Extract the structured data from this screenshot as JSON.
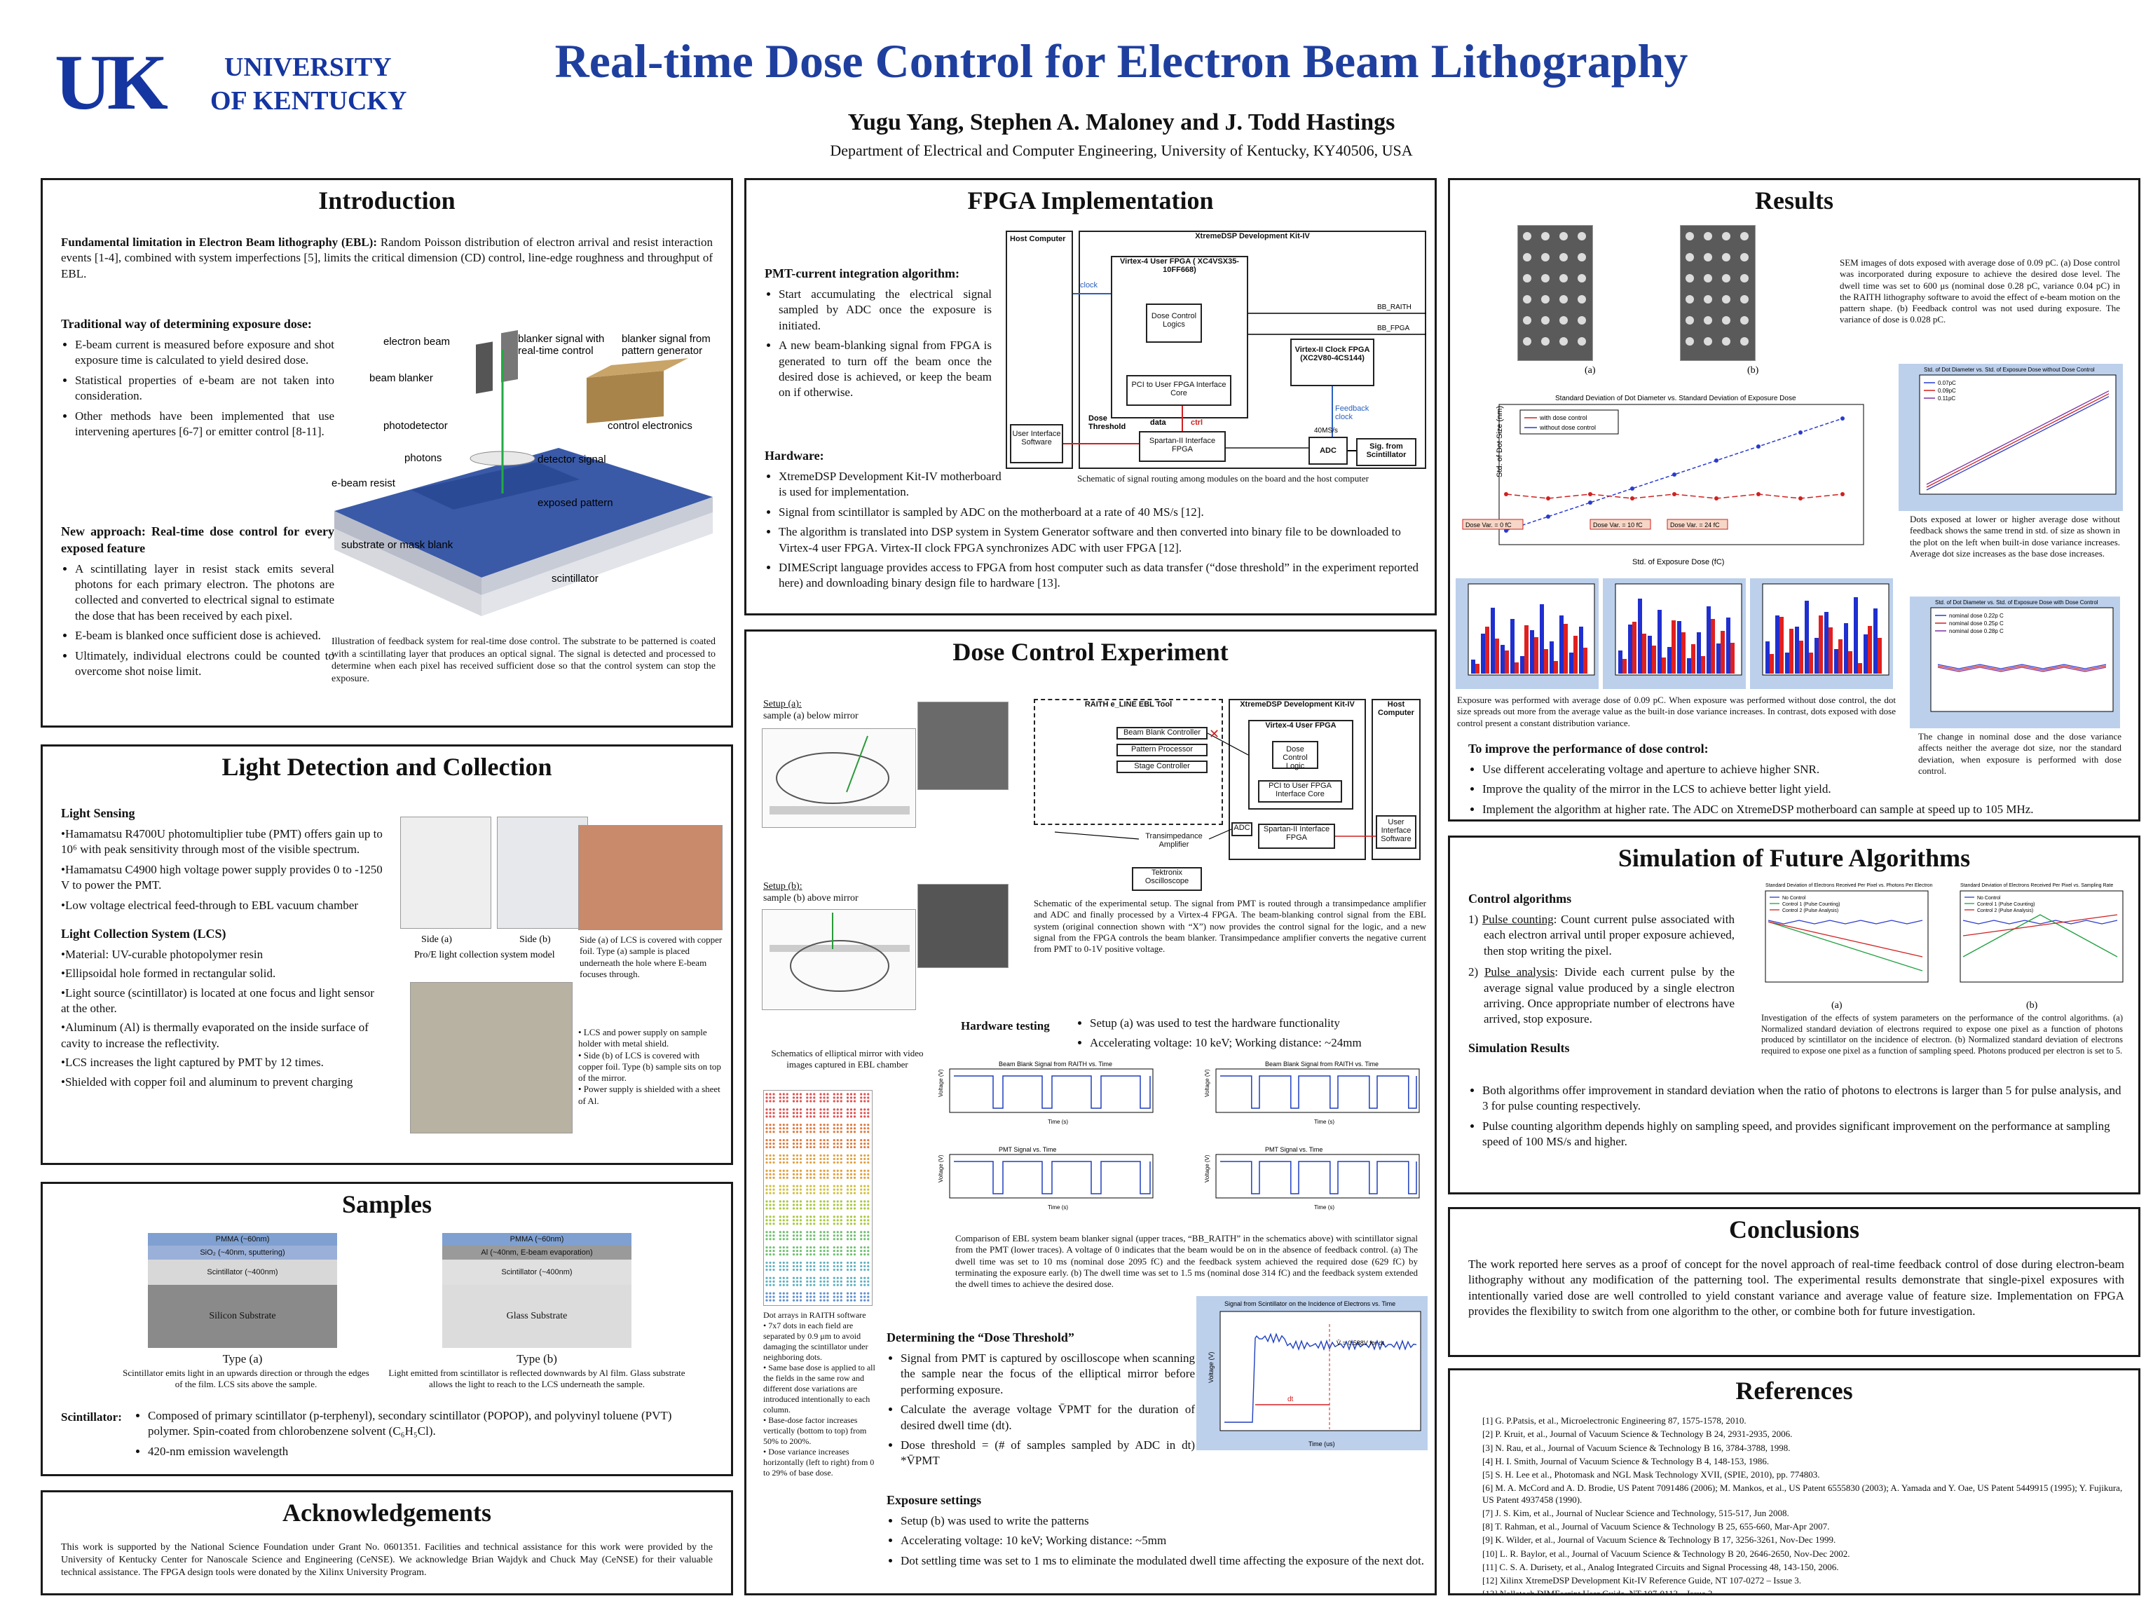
{
  "header": {
    "logo_uk": "UK",
    "logo_univ_line1": "UNIVERSITY",
    "logo_univ_line2": "OF KENTUCKY",
    "title": "Real-time Dose Control for Electron Beam Lithography",
    "authors": "Yugu Yang, Stephen A. Maloney and J. Todd Hastings",
    "affiliation": "Department of Electrical and Computer Engineering, University of Kentucky,  KY40506, USA"
  },
  "intro": {
    "title": "Introduction",
    "fundamental_label": "Fundamental limitation in Electron Beam lithography (EBL):",
    "fundamental_text": "Random Poisson distribution of electron arrival and resist interaction events [1-4], combined with system imperfections [5], limits the critical dimension (CD) control, line-edge roughness and throughput of EBL.",
    "traditional_title": "Traditional way of determining exposure dose:",
    "traditional_items": [
      "E-beam current is measured before exposure and shot exposure time is calculated to yield desired dose.",
      "Statistical properties of e-beam are not taken into consideration.",
      "Other methods have been implemented that use intervening apertures [6-7] or emitter control [8-11]."
    ],
    "new_title": "New approach: Real-time dose control for every exposed feature",
    "new_items": [
      "A scintillating layer in resist stack emits several photons for each primary electron. The photons are collected and converted to electrical signal to estimate the dose that has been received by each pixel.",
      "E-beam is blanked once sufficient dose is achieved.",
      "Ultimately, individual electrons could be counted to overcome shot noise limit."
    ],
    "fig_labels": {
      "electron_beam": "electron beam",
      "blanker_rt": "blanker signal with real-time control",
      "blanker_pg": "blanker signal from pattern generator",
      "beam_blanker": "beam blanker",
      "photodetector": "photodetector",
      "control_electronics": "control electronics",
      "photons": "photons",
      "detector_signal": "detector signal",
      "ebeam_resist": "e-beam resist",
      "exposed_pattern": "exposed pattern",
      "substrate": "substrate or mask blank",
      "scintillator": "scintillator"
    },
    "caption": "Illustration of feedback system for real-time dose control.  The substrate to be patterned is coated with a scintillating layer that produces an optical signal.  The signal is detected and processed to determine when each pixel has received sufficient dose so that the control system can stop the exposure."
  },
  "light": {
    "title": "Light Detection and Collection",
    "sensing_title": "Light Sensing",
    "sensing_items": [
      "•Hamamatsu R4700U photomultiplier tube (PMT) offers gain up to",
      "with peak sensitivity through most of the visible spectrum.",
      "•Hamamatsu C4900 high voltage power supply provides 0 to -1250 V to power the PMT.",
      "•Low voltage electrical feed-through to EBL vacuum chamber"
    ],
    "gain_value": "10⁶",
    "lcs_title": "Light Collection System (LCS)",
    "lcs_items": [
      "•Material: UV-curable photopolymer resin",
      "•Ellipsoidal hole formed in rectangular solid.",
      "•Light source (scintillator) is located at one focus and light sensor at the other.",
      "•Aluminum (Al) is thermally evaporated on the inside surface of cavity to increase the reflectivity.",
      "•LCS increases the light captured by PMT by 12 times.",
      "•Shielded with copper foil and aluminum to prevent charging"
    ],
    "side_a": "Side (a)",
    "side_b": "Side (b)",
    "proe_caption": "Pro/E light collection system model",
    "copper_caption": "Side (a) of LCS is covered with copper foil. Type (a) sample is placed underneath the hole where E-beam focuses through.",
    "photo_notes": [
      "•  LCS and power supply on sample holder with metal shield.",
      "•  Side (b) of LCS is covered with copper foil. Type (b) sample sits on top of the mirror.",
      "•  Power supply is shielded with a sheet of Al."
    ]
  },
  "samples": {
    "title": "Samples",
    "type_a_layers": [
      "PMMA (~60nm)",
      "SiO₂ (~40nm, sputtering)",
      "Scintillator (~400nm)",
      "Silicon Substrate"
    ],
    "type_b_layers": [
      "PMMA (~60nm)",
      "Al (~40nm, E-beam evaporation)",
      "Scintillator (~400nm)",
      "Glass Substrate"
    ],
    "type_a_label": "Type (a)",
    "type_b_label": "Type (b)",
    "type_a_caption": "Scintillator emits light in an upwards direction or through the edges of the film. LCS sits above the sample.",
    "type_b_caption": "Light emitted from scintillator is reflected downwards by Al film. Glass substrate allows the light to reach to the LCS underneath the sample.",
    "scint_label": "Scintillator:",
    "scint_items": [
      "Composed of primary scintillator (p-terphenyl), secondary scintillator (POPOP), and polyvinyl toluene (PVT) polymer.  Spin-coated from chlorobenzene solvent (C₆H₅Cl).",
      "420-nm emission wavelength"
    ]
  },
  "ack": {
    "title": "Acknowledgements",
    "text": "This work is supported by the National Science Foundation under Grant No. 0601351. Facilities and technical assistance for this work were provided by the University of Kentucky Center for Nanoscale Science and Engineering (CeNSE). We acknowledge Brian Wajdyk and Chuck May (CeNSE) for their valuable technical assistance.  The FPGA design tools were donated by the Xilinx University Program."
  },
  "fpga": {
    "title": "FPGA Implementation",
    "pmt_title": "PMT-current integration algorithm:",
    "pmt_items": [
      "Start accumulating the electrical signal sampled by ADC once the exposure is initiated.",
      "A new beam-blanking signal from FPGA is generated to turn off the beam once the desired dose is achieved, or keep the beam on if otherwise."
    ],
    "hardware_title": "Hardware:",
    "hardware_items": [
      "XtremeDSP Development Kit-IV motherboard is used for implementation.",
      "Signal from scintillator is sampled by ADC on the motherboard at a rate of 40 MS/s [12].",
      "The algorithm is translated into DSP system in System Generator software and then converted into binary file to be downloaded to Virtex-4 user FPGA. Virtex-II clock FPGA synchronizes ADC with user FPGA [12].",
      "DIMEScript language provides access to FPGA from host computer such as data transfer (“dose threshold” in the experiment reported here) and downloading binary design file to hardware [13]."
    ],
    "diagram": {
      "host": "Host Computer",
      "kit": "XtremeDSP Development Kit-IV",
      "virtex4": "Virtex-4 User FPGA ( XC4VSX35-10FF668)",
      "dose_logic": "Dose Control Logics",
      "pci": "PCI to User FPGA Interface Core",
      "clock_fpga": "Virtex-II Clock FPGA (XC2V80-4CS144)",
      "spartan": "Spartan-II Interface FPGA",
      "adc": "ADC",
      "adc_rate": "40MS/s",
      "ui": "User Interface Software",
      "dose_threshold": "Dose Threshold",
      "sig": "Sig. from Scintillator",
      "clock": "clock",
      "feedback_clock": "Feedback clock",
      "bb_raith": "BB_RAITH",
      "bb_fpga": "BB_FPGA",
      "data": "data",
      "ctrl": "ctrl"
    },
    "caption": "Schematic of signal routing among modules on the board and the host computer"
  },
  "dose": {
    "title": "Dose Control  Experiment",
    "setup_a": "Setup (a):",
    "setup_a_desc": "sample (a) below mirror",
    "setup_b": "Setup (b):",
    "setup_b_desc": "sample (b) above mirror",
    "mirror_caption": "Schematics of elliptical mirror with video images captured in EBL chamber",
    "schematic_caption": "Schematic of the experimental setup. The signal from PMT is routed through a transimpedance amplifier and ADC and finally processed by a Virtex-4 FPGA. The beam-blanking control signal from the EBL system (original connection shown with “X”) now provides the control signal for the logic, and a new signal from the FPGA controls the beam blanker. Transimpedance amplifier converts the negative current from PMT to 0-1V positive voltage.",
    "schem_labels": {
      "raith": "RAITH e_LINE EBL Tool",
      "kit": "XtremeDSP Development Kit-IV",
      "host": "Host Computer",
      "beam_blank": "Beam Blank Controller",
      "pattern": "Pattern Processor",
      "stage": "Stage Controller",
      "virtex": "Virtex-4 User FPGA",
      "logic": "Dose Control Logic",
      "pci": "PCI to User FPGA Interface Core",
      "spartan": "Spartan-II Interface FPGA",
      "ui": "User Interface Software",
      "amp": "Transimpedance Amplifier",
      "scope": "Tektronix Oscilloscope",
      "adc": "ADC"
    },
    "hw_testing_title": "Hardware testing",
    "hw_testing_items": [
      "Setup (a) was used to test the hardware functionality",
      "Accelerating voltage: 10 keV; Working distance: ~24mm"
    ],
    "plot_top_title": "Beam Blank Signal from RAITH vs. Time",
    "plot_bottom_title": "PMT Signal vs. Time",
    "plot_xlabel": "Time (s)",
    "plot_ylabel": "Voltage (V)",
    "comparison_caption": "Comparison of EBL system beam blanker signal (upper traces, “BB_RAITH” in the schematics above) with scintillator signal from the PMT (lower traces).  A voltage of 0 indicates that the beam would be on in the absence of feedback control. (a) The dwell time was set to 10 ms (nominal dose 2095 fC) and the feedback system achieved the required dose (629 fC) by terminating the exposure early. (b) The dwell time was set to 1.5 ms (nominal dose 314 fC) and the feedback system extended the dwell times to achieve the desired dose.",
    "dot_caption_title": "Dot arrays in RAITH software",
    "dot_caption_items": [
      "• 7x7 dots in each field are separated by 0.9 μm to avoid damaging the scintillator under neighboring dots.",
      "• Same base dose is applied to all the fields in the same row and different dose variations are introduced intentionally to each column.",
      "• Base-dose factor increases vertically (bottom to top) from 50% to 200%.",
      "• Dose variance increases horizontally (left to right) from 0 to 29% of base dose."
    ],
    "threshold_title": "Determining the “Dose Threshold”",
    "threshold_items": [
      "Signal from PMT is captured by oscilloscope when scanning the sample near the focus of the elliptical mirror before performing exposure.",
      "Calculate the average voltage V̄PMT for the duration of desired dwell time (dt).",
      "Dose threshold = (# of samples sampled by ADC in dt) *V̄PMT"
    ],
    "threshold_plot_title": "Signal from Scintillator on the Incidence of Electrons vs. Time",
    "threshold_plot_xlabel": "Time (us)",
    "threshold_plot_ylabel": "Voltage (V)",
    "threshold_annot": "V̄ = 0.588V for dt",
    "threshold_dt": "dt",
    "exposure_title": "Exposure settings",
    "exposure_items": [
      "Setup (b) was used to write the patterns",
      "Accelerating voltage: 10 keV; Working distance: ~5mm",
      "Dot settling time was set to 1 ms to eliminate the modulated dwell time affecting the exposure of the next dot."
    ]
  },
  "results": {
    "title": "Results",
    "sem_a": "(a)",
    "sem_b": "(b)",
    "sem_scale": "1μm",
    "sem_caption": "SEM images of dots exposed with average dose of 0.09 pC. (a) Dose control was incorporated  during exposure to achieve the desired dose level. The dwell time was set to 600 μs (nominal dose 0.28 pC, variance 0.04 pC) in the RAITH lithography software to avoid the effect of e-beam motion on the pattern shape. (b) Feedback control was not used during exposure. The variance of dose is 0.028 pC.",
    "main_plot_title": "Standard Deviation of Dot Diameter vs. Standard Deviation of Exposure Dose",
    "main_plot_xlabel": "Std. of Exposure Dose (fC)",
    "main_plot_ylabel": "Std. of Dot Size (nm)",
    "legend_with": "with dose control",
    "legend_without": "without dose control",
    "annot_0": "Dose Var. = 0 fC",
    "annot_10": "Dose Var. = 10 fC",
    "annot_24": "Dose Var. = 24 fC",
    "hist_caption": "Exposure was performed with average dose of 0.09 pC.  When exposure was performed without dose control, the dot size spreads out more from the average value as the built-in dose variance increases. In contrast, dots exposed with dose control present a constant distribution variance.",
    "right_plot1_title": "Std. of Dot Diameter vs. Std. of Exposure Dose without Dose Control",
    "right_plot1_caption": "Dots exposed at lower or higher average dose without feedback shows the same trend in std. of size as shown in the plot on the left when built-in dose variance increases. Average dot size increases as the base dose increases.",
    "right_plot1_legend": [
      "0.07pC",
      "0.09pC",
      "0.11pC"
    ],
    "right_plot2_title": "Std. of Dot Diameter vs. Std. of Exposure Dose with Dose Control",
    "right_plot2_legend": [
      "nominal dose 0.22p C",
      "nominal dose 0.25p C",
      "nominal dose 0.28p C"
    ],
    "right_plot2_caption": "The change in nominal dose and the dose variance affects neither the average dot size, nor the standard deviation, when exposure is performed with dose control.",
    "improve_title": "To improve the performance of dose control:",
    "improve_items": [
      "Use different accelerating voltage and aperture to achieve higher SNR.",
      "Improve the quality of the mirror in the LCS to achieve better light yield.",
      "Implement the algorithm at higher rate. The ADC on XtremeDSP motherboard can sample at speed up to 105 MHz."
    ]
  },
  "simulation": {
    "title": "Simulation  of Future Algorithms",
    "control_title": "Control algorithms",
    "algo1_label": "Pulse counting",
    "algo1_text": ": Count current pulse associated with each electron arrival until proper exposure achieved, then stop writing the pixel.",
    "algo2_label": "Pulse analysis",
    "algo2_text": ": Divide each current pulse by the average signal value produced by a single electron arriving. Once appropriate number of electrons have arrived, stop exposure.",
    "results_title": "Simulation Results",
    "results_items": [
      "Both algorithms offer improvement in standard deviation when the ratio of photons to electrons is larger than 5 for pulse analysis, and 3 for pulse counting respectively.",
      "Pulse counting algorithm depends highly on sampling speed, and provides significant improvement on the performance at sampling speed of 100 MS/s and higher."
    ],
    "plot_a_label": "(a)",
    "plot_b_label": "(b)",
    "plot_a_title": "Standard Deviation of Electrons Received Per Pixel vs. Photons Per Electron",
    "plot_b_title": "Standard Deviation of Electrons Received Per Pixel vs. Sampling Rate",
    "plot_legend": [
      "No Control",
      "Control 1 (Pulse Counting)",
      "Control 2 (Pulse Analysis)"
    ],
    "caption": "Investigation of the effects of system parameters on the performance of the control algorithms. (a) Normalized standard deviation of electrons required to expose one pixel as a function of photons produced by scintillator on the incidence of electron. (b) Normalized standard deviation of electrons required to expose one pixel as a function of sampling speed. Photons produced per electron is set to 5."
  },
  "conclusions": {
    "title": "Conclusions",
    "text": "The work reported here serves as a proof of concept for the novel approach of real-time feedback control of dose during electron-beam lithography without any modification of the patterning tool.  The experimental results demonstrate that single-pixel exposures with intentionally varied dose are well controlled to yield constant variance and average value of feature size. Implementation on FPGA provides the flexibility to switch from one algorithm to the other, or combine both for future investigation."
  },
  "references": {
    "title": "References",
    "items": [
      "[1]  G. P.Patsis, et al., Microelectronic  Engineering 87, 1575-1578, 2010.",
      "[2]  P. Kruit, et al., Journal of Vacuum Science & Technology B 24, 2931-2935, 2006.",
      "[3]  N. Rau, et al., Journal of Vacuum Science & Technology B 16, 3784-3788, 1998.",
      "[4]  H. I. Smith, Journal of Vacuum Science & Technology B 4, 148-153, 1986.",
      "[5]  S. H. Lee et al., Photomask and NGL Mask Technology XVII, (SPIE, 2010), pp. 774803.",
      "[6]  M. A. McCord and A. D. Brodie, US Patent 7091486 (2006); M. Mankos, et al., US Patent 6555830 (2003); A. Yamada and Y. Oae, US Patent 5449915 (1995); Y. Fujikura, US Patent 4937458 (1990).",
      "[7]  J. S. Kim, et al., Journal of Nuclear Science and Technology, 515-517, Jun 2008.",
      "[8]  T. Rahman, et al., Journal of Vacuum Science & Technology B 25, 655-660, Mar-Apr 2007.",
      "[9]  K. Wilder, et al., Journal of Vacuum Science & Technology B 17, 3256-3261, Nov-Dec 1999.",
      "[10]  L. R. Baylor, et al., Journal of Vacuum Science & Technology B 20, 2646-2650, Nov-Dec 2002.",
      "[11]  C. S. A. Durisety, et al., Analog Integrated Circuits and Signal Processing 48, 143-150, 2006.",
      "[12]  Xilinx XtremeDSP Development Kit-IV Reference Guide, NT 107-0272 – Issue 3.",
      "[13]  Nallatech DIMEscript User Guide, NT 107-0113 – Issue 3."
    ]
  },
  "colors": {
    "uk_blue": "#1535a0",
    "title_blue": "#1f3f9f",
    "panel_border": "#1a1a1a"
  }
}
